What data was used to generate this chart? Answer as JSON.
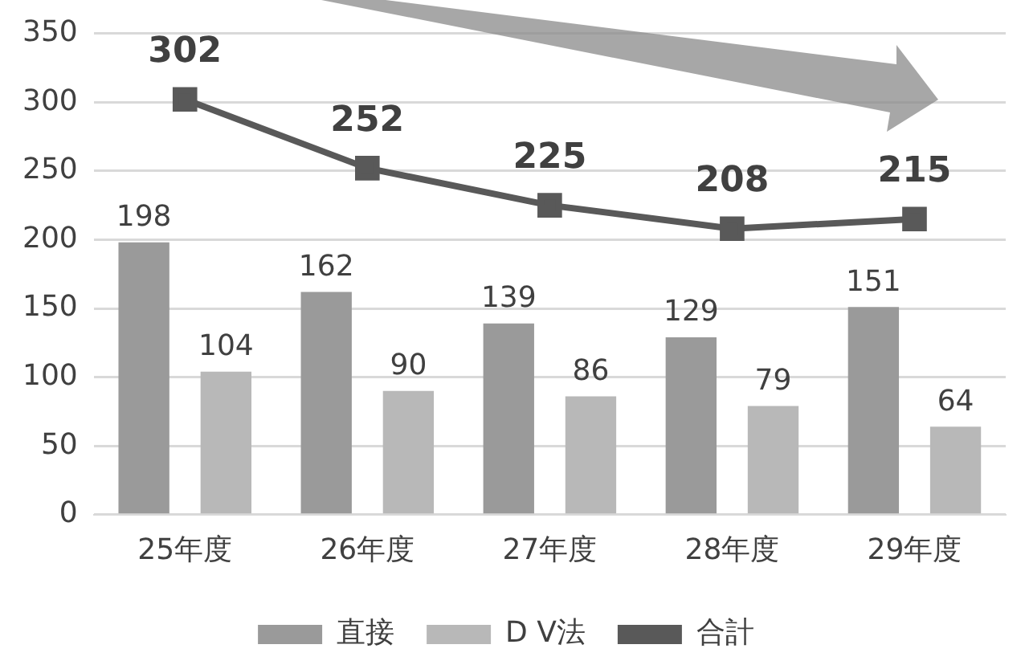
{
  "chart_data": {
    "type": "bar",
    "categories": [
      "25年度",
      "26年度",
      "27年度",
      "28年度",
      "29年度"
    ],
    "series": [
      {
        "name": "直接",
        "color": "#9a9a9a",
        "values": [
          198,
          162,
          139,
          129,
          151
        ]
      },
      {
        "name": "D V法",
        "color": "#b8b8b8",
        "values": [
          104,
          90,
          86,
          79,
          64
        ]
      },
      {
        "name": "合計",
        "type": "line",
        "color": "#595959",
        "values": [
          302,
          252,
          225,
          208,
          215
        ]
      }
    ],
    "ylim": [
      0,
      350
    ],
    "yticks": [
      0,
      50,
      100,
      150,
      200,
      250,
      300,
      350
    ],
    "grid": "y",
    "legend": "bottom",
    "data_labels": true,
    "marker": "square",
    "line_style": "solid"
  }
}
